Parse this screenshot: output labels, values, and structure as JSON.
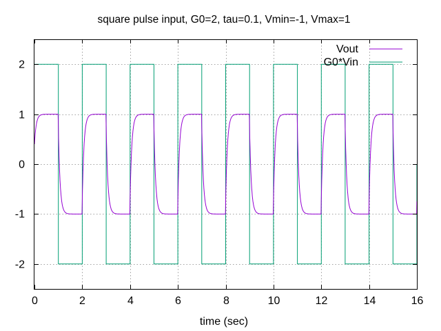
{
  "chart_data": {
    "type": "line",
    "title": "square pulse input, G0=2, tau=0.1, Vmin=-1, Vmax=1",
    "xlabel": "time (sec)",
    "ylabel": "",
    "xlim": [
      0,
      16
    ],
    "ylim": [
      -2.5,
      2.5
    ],
    "xticks": [
      0,
      2,
      4,
      6,
      8,
      10,
      12,
      14,
      16
    ],
    "yticks": [
      -2,
      -1,
      0,
      1,
      2
    ],
    "grid": true,
    "legend_position": "top-right",
    "series": [
      {
        "name": "Vout",
        "color": "#9400d3",
        "period": 2,
        "high": 1,
        "low": -1,
        "start": 0.4,
        "rise_to": 0.9,
        "values_summary": "square wave switching every 1 s between 1 and -1 with short exponential transitions"
      },
      {
        "name": "G0*Vin",
        "color": "#009e73",
        "period": 2,
        "high": 2,
        "low": -2,
        "values_summary": "square pulse switching every 1 s between 2 and -2"
      }
    ]
  }
}
